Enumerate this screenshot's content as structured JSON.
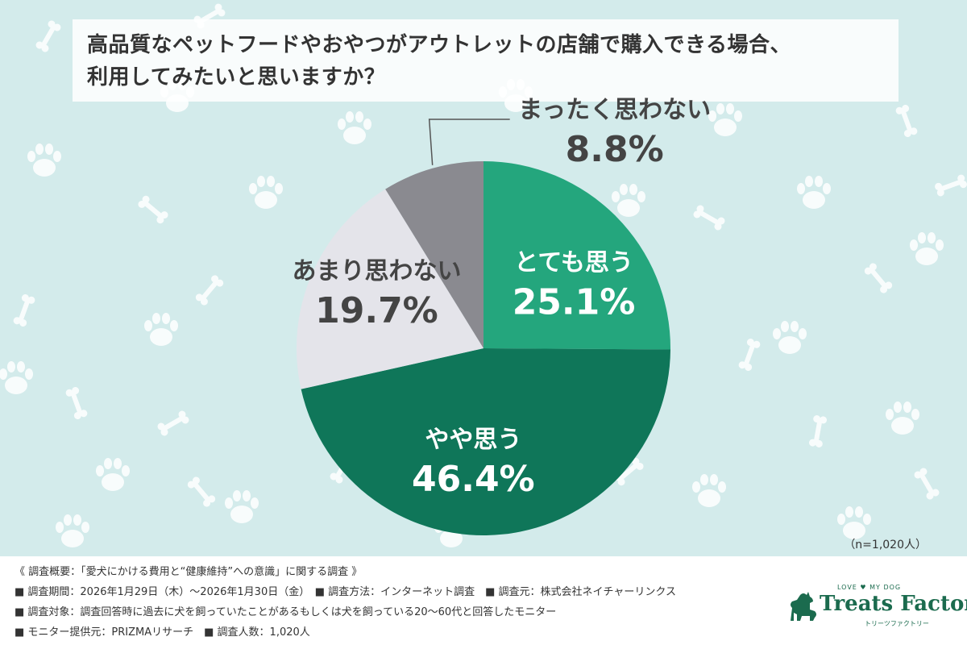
{
  "title": {
    "line1": "高品質なペットフードやおやつがアウトレットの店舗で購入できる場合、",
    "line2": "利用してみたいと思いますか？"
  },
  "colors": {
    "background": "#d3ebeb",
    "slice_1": "#24a67d",
    "slice_2": "#0f7659",
    "slice_3": "#e4e4ea",
    "slice_4": "#8a8a90"
  },
  "chart_data": {
    "type": "pie",
    "title": "高品質なペットフードやおやつがアウトレットの店舗で購入できる場合、利用してみたいと思いますか？",
    "slices": [
      {
        "label": "とても思う",
        "value": 25.1,
        "display": "25.1%"
      },
      {
        "label": "やや思う",
        "value": 46.4,
        "display": "46.4%"
      },
      {
        "label": "あまり思わない",
        "value": 19.7,
        "display": "19.7%"
      },
      {
        "label": "まったく思わない",
        "value": 8.8,
        "display": "8.8%"
      }
    ],
    "sample_size": "（n=1,020人）"
  },
  "footer": {
    "line1": "《 調査概要：「愛犬にかける費用と“健康維持”への意識」に関する調査 》",
    "line2": "■ 調査期間：2026年1月29日（木）～2026年1月30日（金）　■ 調査方法：インターネット調査　■ 調査元：株式会社ネイチャーリンクス",
    "line3": "■ 調査対象：調査回答時に過去に犬を飼っていたことがあるもしくは犬を飼っている20～60代と回答したモニター",
    "line4": "■ モニター提供元：PRIZMAリサーチ　■ 調査人数：1,020人"
  },
  "logo": {
    "tagline": "LOVE ♥ MY DOG",
    "name": "Treats Factory",
    "kana": "トリーツファクトリー"
  }
}
